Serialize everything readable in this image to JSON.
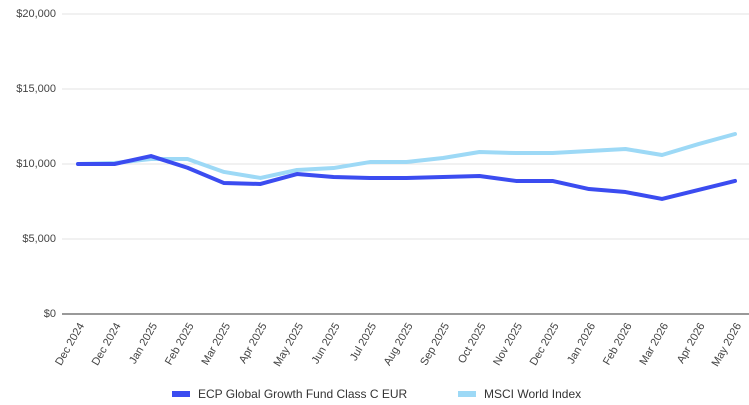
{
  "chart_data": {
    "type": "line",
    "categories": [
      "Dec 2024",
      "Dec 2024",
      "Jan 2025",
      "Feb 2025",
      "Mar 2025",
      "Apr 2025",
      "May 2025",
      "Jun 2025",
      "Jul 2025",
      "Aug 2025",
      "Sep 2025",
      "Oct 2025",
      "Nov 2025",
      "Dec 2025",
      "Jan 2026",
      "Feb 2026",
      "Mar 2026",
      "Apr 2026",
      "May 2026"
    ],
    "series": [
      {
        "name": "ECP Global Growth Fund Class C EUR",
        "color": "#3b4cf0",
        "values": [
          10000,
          10000,
          10530,
          9750,
          8730,
          8670,
          9330,
          9130,
          9070,
          9070,
          9130,
          9200,
          8870,
          8870,
          8330,
          8130,
          7670,
          8270,
          8870
        ]
      },
      {
        "name": "MSCI World Index",
        "color": "#9dd9f6",
        "values": [
          10000,
          10070,
          10330,
          10330,
          9470,
          9070,
          9600,
          9730,
          10130,
          10130,
          10400,
          10800,
          10730,
          10730,
          10870,
          11000,
          10600,
          11330,
          12000
        ]
      }
    ],
    "ylim": [
      0,
      20000
    ],
    "yticks": [
      {
        "value": 0,
        "label": "$0"
      },
      {
        "value": 5000,
        "label": "$5,000"
      },
      {
        "value": 10000,
        "label": "$10,000"
      },
      {
        "value": 15000,
        "label": "$15,000"
      },
      {
        "value": 20000,
        "label": "$20,000"
      }
    ],
    "grid": true,
    "legend": "bottom"
  }
}
